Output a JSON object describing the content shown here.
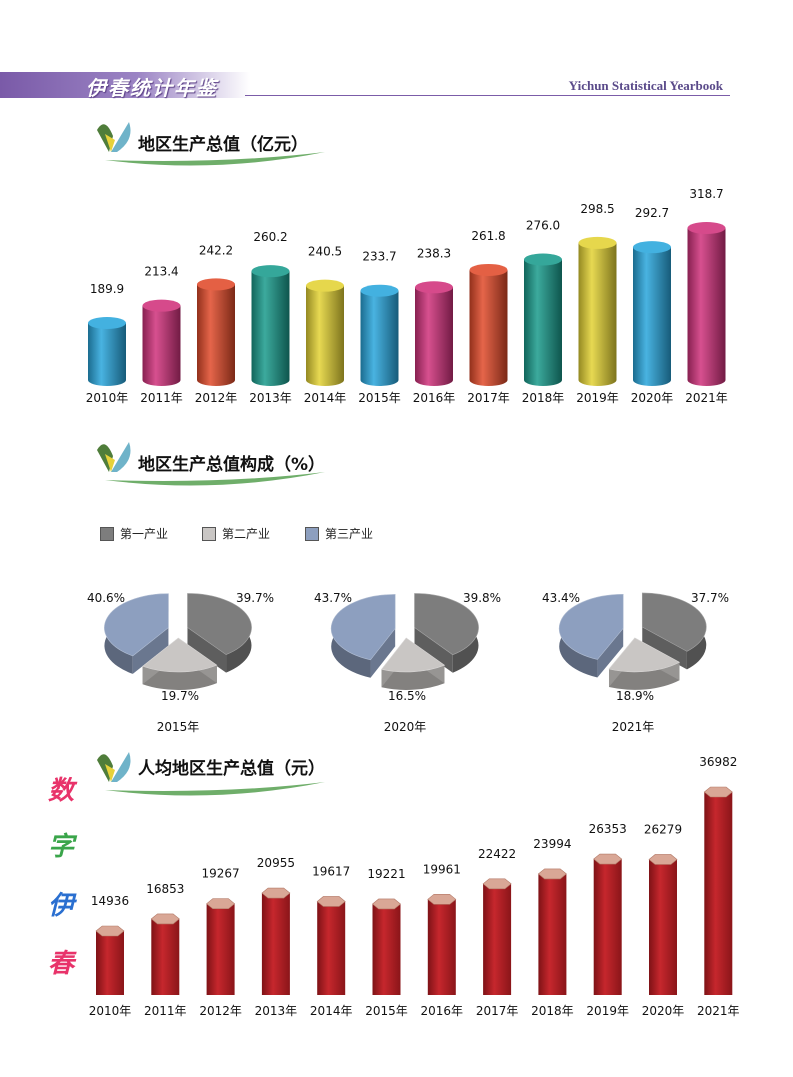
{
  "header": {
    "title_cn": "伊春统计年鉴",
    "title_en": "Yichun Statistical Yearbook"
  },
  "side_label": [
    "数",
    "字",
    "伊",
    "春"
  ],
  "side_colors": [
    "#e8336a",
    "#3aa54a",
    "#2a6fd0",
    "#e8336a"
  ],
  "sections": {
    "gdp_title": "地区生产总值（亿元）",
    "structure_title": "地区生产总值构成（%）",
    "per_capita_title": "人均地区生产总值（元）"
  },
  "chart_data": [
    {
      "type": "bar",
      "title": "地区生产总值（亿元）",
      "categories": [
        "2010年",
        "2011年",
        "2012年",
        "2013年",
        "2014年",
        "2015年",
        "2016年",
        "2017年",
        "2018年",
        "2019年",
        "2020年",
        "2021年"
      ],
      "values": [
        189.9,
        213.4,
        242.2,
        260.2,
        240.5,
        233.7,
        238.3,
        261.8,
        276.0,
        298.5,
        292.7,
        318.7
      ],
      "value_labels": [
        "189.9",
        "213.4",
        "242.2",
        "260.2",
        "240.5",
        "233.7",
        "238.3",
        "261.8",
        "276.0",
        "298.5",
        "292.7",
        "318.7"
      ],
      "colors": [
        "#29a6dc",
        "#d0317b",
        "#e04a2a",
        "#1a9b8c",
        "#e3d234",
        "#29a6dc",
        "#d0317b",
        "#e04a2a",
        "#1a9b8c",
        "#e3d234",
        "#29a6dc",
        "#d0317b"
      ]
    },
    {
      "type": "pie",
      "title": "地区生产总值构成（%）",
      "legend": [
        "第一产业",
        "第二产业",
        "第三产业"
      ],
      "colors": [
        "#7d7d7d",
        "#c9c6c4",
        "#8d9fbf"
      ],
      "pies": [
        {
          "label": "2015年",
          "values": [
            39.7,
            19.7,
            40.6
          ],
          "value_labels": [
            "39.7%",
            "19.7%",
            "40.6%"
          ]
        },
        {
          "label": "2020年",
          "values": [
            39.8,
            16.5,
            43.7
          ],
          "value_labels": [
            "39.8%",
            "16.5%",
            "43.7%"
          ]
        },
        {
          "label": "2021年",
          "values": [
            37.7,
            18.9,
            43.4
          ],
          "value_labels": [
            "37.7%",
            "18.9%",
            "43.4%"
          ]
        }
      ]
    },
    {
      "type": "bar",
      "title": "人均地区生产总值（元）",
      "categories": [
        "2010年",
        "2011年",
        "2012年",
        "2013年",
        "2014年",
        "2015年",
        "2016年",
        "2017年",
        "2018年",
        "2019年",
        "2020年",
        "2021年"
      ],
      "values": [
        14936,
        16853,
        19267,
        20955,
        19617,
        19221,
        19961,
        22422,
        23994,
        26353,
        26279,
        36982
      ],
      "value_labels": [
        "14936",
        "16853",
        "19267",
        "20955",
        "19617",
        "19221",
        "19961",
        "22422",
        "23994",
        "26353",
        "26279",
        "36982"
      ],
      "colors": [
        "#b02025"
      ]
    }
  ]
}
